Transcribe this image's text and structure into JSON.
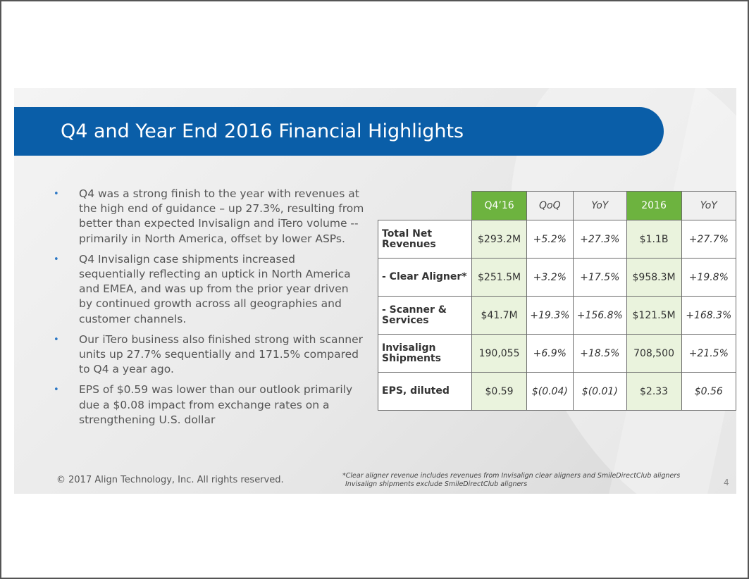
{
  "title": "Q4 and Year End 2016 Financial Highlights",
  "bullets": [
    "Q4 was a strong finish to the year with revenues at the high end of guidance – up 27.3%, resulting from better than expected Invisalign and iTero volume -- primarily in North America, offset by lower ASPs.",
    "Q4 Invisalign case shipments increased sequentially reflecting an uptick in North America and EMEA, and was up from the prior year driven by continued growth across all geographies and customer channels.",
    "Our iTero business also finished strong with scanner units up 27.7% sequentially and 171.5% compared to Q4 a year ago.",
    "EPS of $0.59 was lower than our outlook primarily due a $0.08 impact from exchange rates on a strengthening U.S. dollar"
  ],
  "table": {
    "headers": [
      "Q4’16",
      "QoQ",
      "YoY",
      "2016",
      "YoY"
    ],
    "rows": [
      {
        "label": "Total Net Revenues",
        "values": [
          "$293.2M",
          "+5.2%",
          "+27.3%",
          "$1.1B",
          "+27.7%"
        ]
      },
      {
        "label": "- Clear Aligner*",
        "values": [
          "$251.5M",
          "+3.2%",
          "+17.5%",
          "$958.3M",
          "+19.8%"
        ]
      },
      {
        "label": "- Scanner & Services",
        "values": [
          "$41.7M",
          "+19.3%",
          "+156.8%",
          "$121.5M",
          "+168.3%"
        ]
      },
      {
        "label": "Invisalign Shipments",
        "values": [
          "190,055",
          "+6.9%",
          "+18.5%",
          "708,500",
          "+21.5%"
        ]
      },
      {
        "label": "EPS, diluted",
        "values": [
          "$0.59",
          "$(0.04)",
          "$(0.01)",
          "$2.33",
          "$0.56"
        ]
      }
    ]
  },
  "footer": "© 2017 Align Technology, Inc. All rights reserved.",
  "footnote_line1": "*Clear aligner revenue includes revenues from Invisalign clear aligners and SmileDirectClub aligners",
  "footnote_line2": "Invisalign shipments exclude SmileDirectClub aligners",
  "page_number": "4",
  "colors": {
    "title_bar": "#0a5ea8",
    "green_header": "#6db33f",
    "green_cell": "#eaf3dd",
    "bullet": "#2b77c5"
  }
}
